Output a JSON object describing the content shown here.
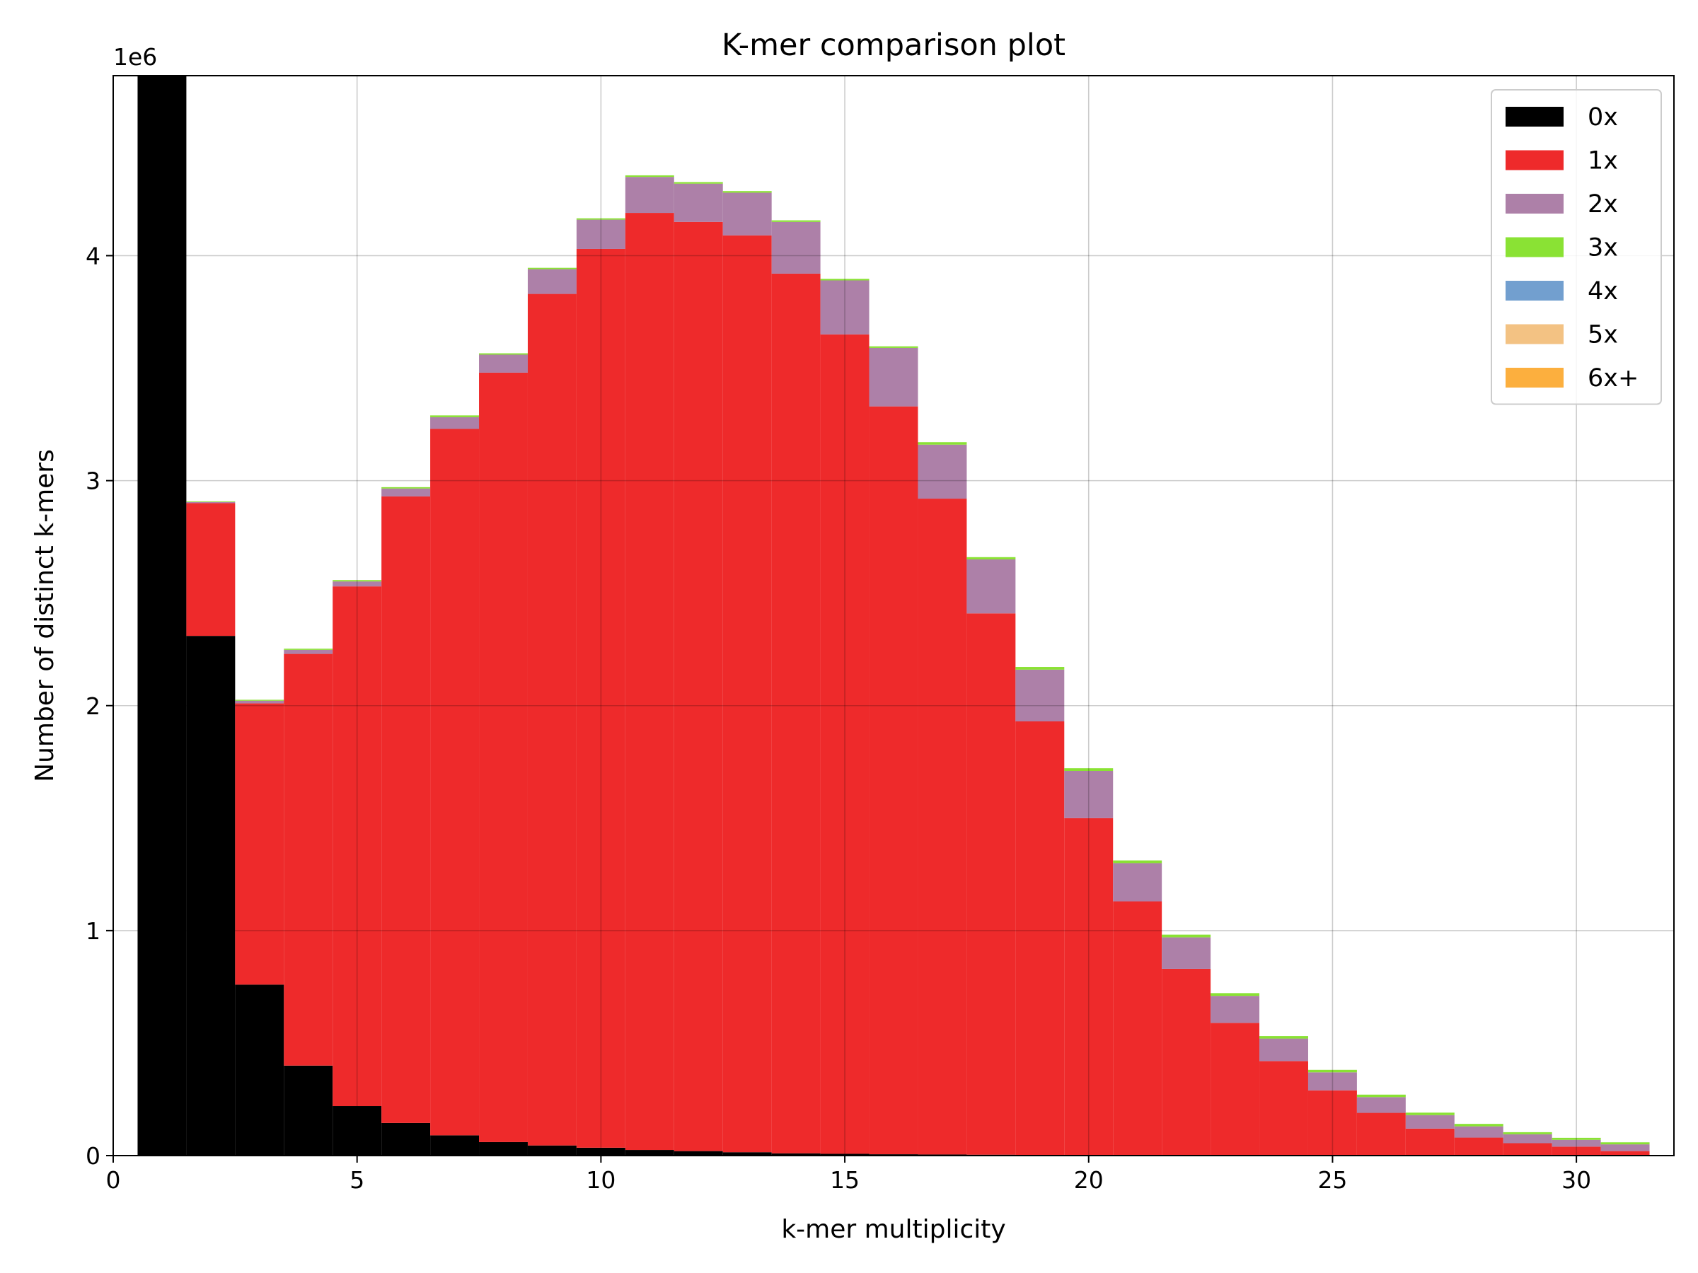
{
  "chart_data": {
    "type": "bar",
    "stacked": true,
    "title": "K-mer comparison plot",
    "xlabel": "k-mer multiplicity",
    "ylabel": "Number of distinct k-mers",
    "y_scale_label": "1e6",
    "xlim": [
      0,
      32
    ],
    "ylim": [
      0,
      4.8
    ],
    "x_ticks": [
      0,
      5,
      10,
      15,
      20,
      25,
      30
    ],
    "x_tick_labels": [
      "0",
      "5",
      "10",
      "15",
      "20",
      "25",
      "30"
    ],
    "y_ticks": [
      0,
      1,
      2,
      3,
      4
    ],
    "y_tick_labels": [
      "0",
      "1",
      "2",
      "3",
      "4"
    ],
    "grid": true,
    "legend_position": "top-right",
    "categories": [
      1,
      2,
      3,
      4,
      5,
      6,
      7,
      8,
      9,
      10,
      11,
      12,
      13,
      14,
      15,
      16,
      17,
      18,
      19,
      20,
      21,
      22,
      23,
      24,
      25,
      26,
      27,
      28,
      29,
      30,
      31
    ],
    "series": [
      {
        "name": "0x",
        "color": "#000000",
        "values": [
          4.8,
          2.31,
          0.76,
          0.4,
          0.22,
          0.145,
          0.09,
          0.06,
          0.045,
          0.035,
          0.025,
          0.02,
          0.015,
          0.01,
          0.008,
          0.006,
          0.005,
          0.004,
          0.003,
          0.003,
          0.002,
          0.002,
          0.002,
          0.001,
          0.001,
          0.001,
          0.001,
          0.001,
          0.001,
          0.001,
          0.001
        ]
      },
      {
        "name": "1x",
        "color": "#ee2a2b",
        "values": [
          0,
          0.59,
          1.25,
          1.83,
          2.31,
          2.785,
          3.14,
          3.42,
          3.785,
          3.995,
          4.165,
          4.13,
          4.075,
          3.91,
          3.642,
          3.324,
          2.915,
          2.406,
          1.927,
          1.497,
          1.128,
          0.828,
          0.588,
          0.419,
          0.289,
          0.189,
          0.119,
          0.079,
          0.054,
          0.039,
          0.019
        ]
      },
      {
        "name": "2x",
        "color": "#ad80a8",
        "values": [
          0,
          0.005,
          0.012,
          0.018,
          0.022,
          0.035,
          0.052,
          0.08,
          0.11,
          0.13,
          0.16,
          0.17,
          0.19,
          0.23,
          0.24,
          0.26,
          0.24,
          0.24,
          0.23,
          0.21,
          0.17,
          0.14,
          0.12,
          0.1,
          0.08,
          0.07,
          0.06,
          0.05,
          0.04,
          0.03,
          0.03
        ]
      },
      {
        "name": "3x",
        "color": "#8ae234",
        "values": [
          0,
          0.003,
          0.004,
          0.005,
          0.006,
          0.006,
          0.008,
          0.006,
          0.006,
          0.006,
          0.007,
          0.007,
          0.007,
          0.007,
          0.007,
          0.007,
          0.011,
          0.01,
          0.012,
          0.012,
          0.012,
          0.012,
          0.012,
          0.011,
          0.011,
          0.011,
          0.011,
          0.011,
          0.009,
          0.009,
          0.009
        ]
      },
      {
        "name": "4x",
        "color": "#729fcf",
        "values": [
          0,
          0,
          0,
          0,
          0,
          0,
          0,
          0,
          0,
          0,
          0,
          0,
          0,
          0,
          0,
          0,
          0,
          0,
          0,
          0,
          0,
          0,
          0,
          0,
          0,
          0,
          0,
          0,
          0,
          0,
          0
        ]
      },
      {
        "name": "5x",
        "color": "#f3c283",
        "values": [
          0,
          0,
          0,
          0,
          0,
          0,
          0,
          0,
          0,
          0,
          0,
          0,
          0,
          0,
          0,
          0,
          0,
          0,
          0,
          0,
          0,
          0,
          0,
          0,
          0,
          0,
          0,
          0,
          0,
          0,
          0
        ]
      },
      {
        "name": "6x+",
        "color": "#fcaf3e",
        "values": [
          0,
          0,
          0,
          0,
          0,
          0,
          0,
          0,
          0,
          0,
          0,
          0,
          0,
          0,
          0,
          0,
          0,
          0,
          0,
          0,
          0,
          0,
          0,
          0,
          0,
          0,
          0,
          0,
          0,
          0,
          0
        ]
      }
    ]
  }
}
